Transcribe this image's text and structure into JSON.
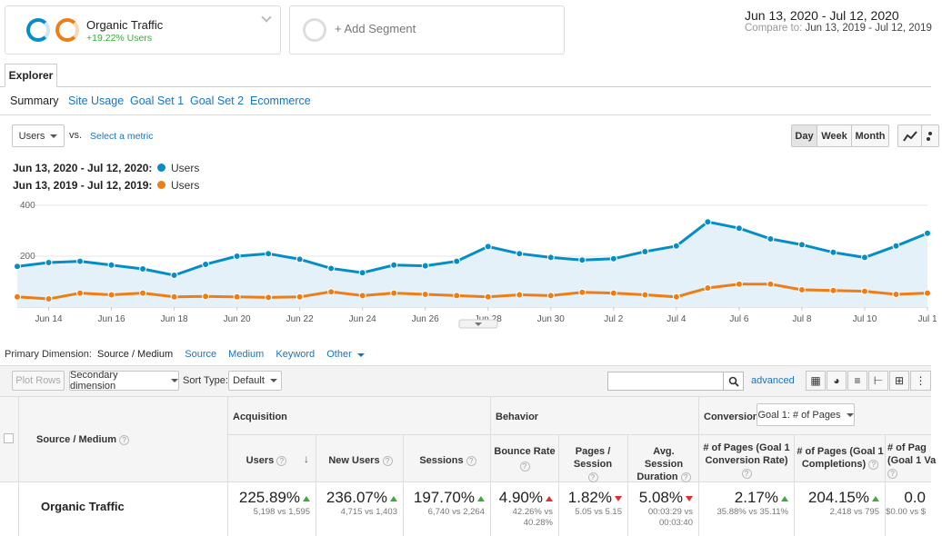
{
  "segments": {
    "active": {
      "name": "Organic Traffic",
      "change": "+19.22% Users"
    },
    "add_label": "+ Add Segment"
  },
  "date_range": {
    "primary": "Jun 13, 2020 - Jul 12, 2020",
    "compare_label": "Compare to:",
    "compare": "Jun 13, 2019 - Jul 12, 2019"
  },
  "explorer_tab": "Explorer",
  "subtabs": [
    "Summary",
    "Site Usage",
    "Goal Set 1",
    "Goal Set 2",
    "Ecommerce"
  ],
  "metric_select": {
    "value": "Users",
    "vs": "vs.",
    "select_metric": "Select a metric"
  },
  "granularity": [
    "Day",
    "Week",
    "Month"
  ],
  "legend": [
    {
      "range": "Jun 13, 2020 - Jul 12, 2020:",
      "metric": "Users",
      "color": "#058dc7"
    },
    {
      "range": "Jun 13, 2019 - Jul 12, 2019:",
      "metric": "Users",
      "color": "#ed7e17"
    }
  ],
  "chart_data": {
    "type": "line",
    "ylim": [
      0,
      400
    ],
    "yticks": [
      "400",
      "200"
    ],
    "x_tick_labels": [
      "Jun 14",
      "Jun 16",
      "Jun 18",
      "Jun 20",
      "Jun 22",
      "Jun 24",
      "Jun 26",
      "Jun 28",
      "Jun 30",
      "Jul 2",
      "Jul 4",
      "Jul 6",
      "Jul 8",
      "Jul 10",
      "Jul 1"
    ],
    "series": [
      {
        "name": "Users",
        "color": "#058dc7",
        "values": [
          160,
          175,
          180,
          165,
          150,
          125,
          168,
          200,
          210,
          188,
          152,
          135,
          165,
          162,
          180,
          238,
          210,
          195,
          185,
          190,
          218,
          240,
          335,
          310,
          268,
          245,
          215,
          195,
          240,
          290
        ]
      },
      {
        "name": "Users",
        "color": "#ed7e17",
        "values": [
          40,
          32,
          55,
          48,
          55,
          40,
          42,
          40,
          38,
          40,
          60,
          45,
          55,
          50,
          45,
          40,
          48,
          45,
          58,
          55,
          48,
          40,
          75,
          90,
          90,
          68,
          65,
          62,
          50,
          55
        ]
      }
    ]
  },
  "primary_dimension": {
    "label": "Primary Dimension:",
    "active": "Source / Medium",
    "options": [
      "Source",
      "Medium",
      "Keyword",
      "Other"
    ]
  },
  "toolbar": {
    "plot_rows": "Plot Rows",
    "secondary": "Secondary dimension",
    "sort_type_label": "Sort Type:",
    "sort_value": "Default",
    "advanced": "advanced",
    "search_value": ""
  },
  "table": {
    "dim_header": "Source / Medium",
    "groups": {
      "acquisition": "Acquisition",
      "behavior": "Behavior",
      "conversions": "Conversions",
      "goal_select": "Goal 1: # of Pages"
    },
    "columns": [
      "Users",
      "New Users",
      "Sessions",
      "Bounce Rate",
      "Pages / Session",
      "Avg. Session Duration",
      "# of Pages (Goal 1 Conversion Rate)",
      "# of Pages (Goal 1 Completions)",
      "# of Pag (Goal 1 Va"
    ],
    "row": {
      "name": "Organic Traffic",
      "cells": [
        {
          "value": "225.89%",
          "dir": "up",
          "detail": "5,198 vs 1,595"
        },
        {
          "value": "236.07%",
          "dir": "up",
          "detail": "4,715 vs 1,403"
        },
        {
          "value": "197.70%",
          "dir": "up",
          "detail": "6,740 vs 2,264"
        },
        {
          "value": "4.90%",
          "dir": "up-red",
          "detail": "42.26% vs",
          "detail2": "40.28%"
        },
        {
          "value": "1.82%",
          "dir": "down",
          "detail": "5.05 vs 5.15"
        },
        {
          "value": "5.08%",
          "dir": "down",
          "detail": "00:03:29 vs",
          "detail2": "00:03:40"
        },
        {
          "value": "2.17%",
          "dir": "up",
          "detail": "35.88% vs 35.11%"
        },
        {
          "value": "204.15%",
          "dir": "up",
          "detail": "2,418 vs 795"
        },
        {
          "value": "0.0",
          "dir": "",
          "detail": "$0.00 vs $"
        }
      ]
    }
  }
}
